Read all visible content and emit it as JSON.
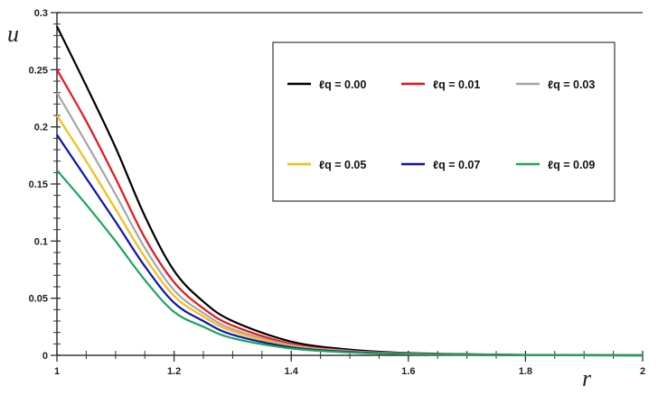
{
  "chart_data": {
    "type": "line",
    "title": "",
    "xlabel": "r",
    "ylabel": "u",
    "xlim": [
      1,
      2
    ],
    "ylim": [
      0,
      0.3
    ],
    "x_ticks": [
      "1",
      "1.2",
      "1.4",
      "1.6",
      "1.8",
      "2"
    ],
    "y_ticks": [
      "0",
      "0.05",
      "0.1",
      "0.15",
      "0.2",
      "0.25",
      "0.3"
    ],
    "x_minor_step": 0.05,
    "y_minor_step": 0.01,
    "grid": false,
    "legend_placement": "top-right",
    "x": [
      1,
      1.05,
      1.1,
      1.15,
      1.2,
      1.25,
      1.3,
      1.4,
      1.5,
      1.6,
      1.7,
      1.8,
      2
    ],
    "series": [
      {
        "name": "ℓq  = 0.00",
        "color": "#000000",
        "values": [
          0.288,
          0.236,
          0.182,
          0.122,
          0.074,
          0.047,
          0.03,
          0.012,
          0.005,
          0.002,
          0.001,
          0.0003,
          0
        ]
      },
      {
        "name": "ℓq  = 0.01",
        "color": "#e8141b",
        "values": [
          0.25,
          0.205,
          0.155,
          0.103,
          0.064,
          0.041,
          0.026,
          0.01,
          0.004,
          0.0017,
          0.0008,
          0.0003,
          0
        ]
      },
      {
        "name": "ℓq  = 0.03",
        "color": "#a6a6a6",
        "values": [
          0.23,
          0.186,
          0.141,
          0.094,
          0.057,
          0.037,
          0.023,
          0.009,
          0.0037,
          0.0015,
          0.0007,
          0.0002,
          0
        ]
      },
      {
        "name": "ℓq  = 0.05",
        "color": "#f6bb12",
        "values": [
          0.21,
          0.17,
          0.128,
          0.086,
          0.052,
          0.034,
          0.021,
          0.008,
          0.0033,
          0.0014,
          0.0006,
          0.0002,
          0
        ]
      },
      {
        "name": "ℓq  = 0.07",
        "color": "#0c12b8",
        "values": [
          0.193,
          0.155,
          0.117,
          0.078,
          0.046,
          0.03,
          0.018,
          0.007,
          0.003,
          0.0012,
          0.0005,
          0.0002,
          0
        ]
      },
      {
        "name": "ℓq  = 0.09",
        "color": "#1aa658",
        "values": [
          0.162,
          0.132,
          0.1,
          0.066,
          0.038,
          0.025,
          0.015,
          0.006,
          0.0025,
          0.001,
          0.0004,
          0.0001,
          0
        ]
      }
    ]
  }
}
